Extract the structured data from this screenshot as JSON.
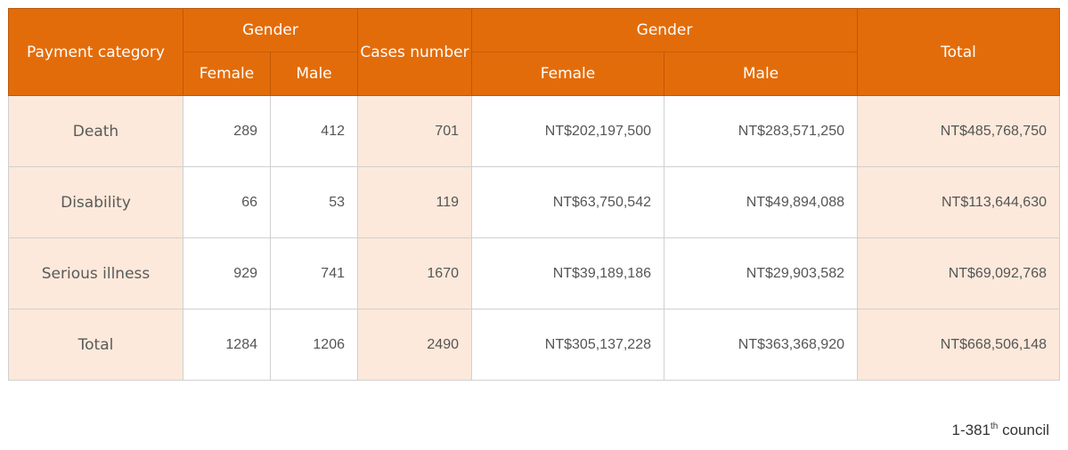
{
  "table": {
    "headers": {
      "payment_category": "Payment category",
      "gender_group_1": "Gender",
      "female_1": "Female",
      "male_1": "Male",
      "cases_number": "Cases number",
      "gender_group_2": "Gender",
      "female_2": "Female",
      "male_2": "Male",
      "total": "Total"
    },
    "rows": [
      {
        "category": "Death",
        "female_cases": "289",
        "male_cases": "412",
        "cases_number": "701",
        "female_amount": "NT$202,197,500",
        "male_amount": "NT$283,571,250",
        "total_amount": "NT$485,768,750"
      },
      {
        "category": "Disability",
        "female_cases": "66",
        "male_cases": "53",
        "cases_number": "119",
        "female_amount": "NT$63,750,542",
        "male_amount": "NT$49,894,088",
        "total_amount": "NT$113,644,630"
      },
      {
        "category": "Serious illness",
        "female_cases": "929",
        "male_cases": "741",
        "cases_number": "1670",
        "female_amount": "NT$39,189,186",
        "male_amount": "NT$29,903,582",
        "total_amount": "NT$69,092,768"
      },
      {
        "category": "Total",
        "female_cases": "1284",
        "male_cases": "1206",
        "cases_number": "2490",
        "female_amount": "NT$305,137,228",
        "male_amount": "NT$363,368,920",
        "total_amount": "NT$668,506,148"
      }
    ]
  },
  "footnote": {
    "prefix": "1-381",
    "superscript": "th",
    "suffix": " council"
  },
  "colors": {
    "header_bg": "#e36c0a",
    "header_text": "#ffffff",
    "shaded_cell": "#fce9db",
    "border": "#d0d0d0"
  }
}
